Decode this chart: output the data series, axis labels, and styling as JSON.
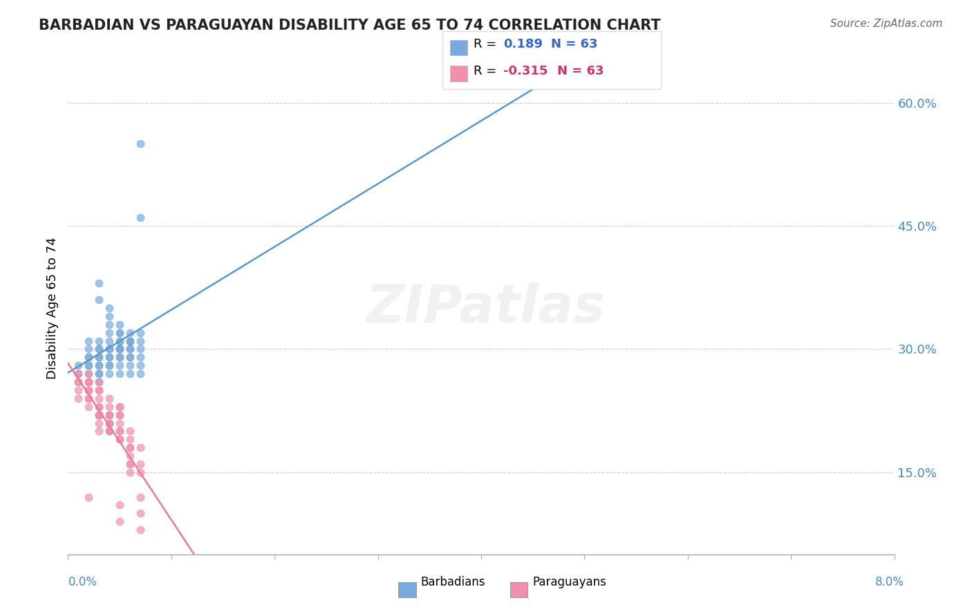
{
  "title": "BARBADIAN VS PARAGUAYAN DISABILITY AGE 65 TO 74 CORRELATION CHART",
  "source": "Source: ZipAtlas.com",
  "ylabel": "Disability Age 65 to 74",
  "y_tick_labels": [
    "15.0%",
    "30.0%",
    "45.0%",
    "60.0%"
  ],
  "y_tick_values": [
    0.15,
    0.3,
    0.45,
    0.6
  ],
  "x_min": 0.0,
  "x_max": 0.08,
  "y_min": 0.05,
  "y_max": 0.65,
  "barbadian_color": "#7aaadd",
  "paraguayan_color": "#f090aa",
  "blue_line_color": "#5599cc",
  "pink_line_color": "#ee7799",
  "grid_color": "#cccccc",
  "background_color": "#ffffff",
  "barbadian_x": [
    0.001,
    0.001,
    0.002,
    0.002,
    0.002,
    0.002,
    0.002,
    0.002,
    0.003,
    0.003,
    0.003,
    0.003,
    0.003,
    0.003,
    0.003,
    0.003,
    0.004,
    0.004,
    0.004,
    0.004,
    0.004,
    0.004,
    0.004,
    0.004,
    0.004,
    0.005,
    0.005,
    0.005,
    0.005,
    0.005,
    0.005,
    0.005,
    0.005,
    0.006,
    0.006,
    0.006,
    0.006,
    0.006,
    0.006,
    0.006,
    0.007,
    0.007,
    0.007,
    0.007,
    0.007,
    0.003,
    0.002,
    0.004,
    0.003,
    0.005,
    0.003,
    0.004,
    0.005,
    0.006,
    0.005,
    0.006,
    0.007,
    0.003,
    0.004,
    0.005,
    0.006,
    0.007,
    0.007
  ],
  "barbadian_y": [
    0.27,
    0.28,
    0.29,
    0.28,
    0.3,
    0.31,
    0.27,
    0.29,
    0.38,
    0.36,
    0.3,
    0.29,
    0.27,
    0.28,
    0.31,
    0.26,
    0.33,
    0.32,
    0.31,
    0.3,
    0.34,
    0.29,
    0.27,
    0.28,
    0.35,
    0.3,
    0.29,
    0.28,
    0.32,
    0.3,
    0.27,
    0.33,
    0.31,
    0.28,
    0.3,
    0.29,
    0.31,
    0.32,
    0.27,
    0.29,
    0.46,
    0.28,
    0.3,
    0.29,
    0.31,
    0.27,
    0.28,
    0.3,
    0.29,
    0.31,
    0.3,
    0.28,
    0.29,
    0.3,
    0.32,
    0.31,
    0.27,
    0.28,
    0.29,
    0.3,
    0.31,
    0.32,
    0.55
  ],
  "paraguayan_x": [
    0.001,
    0.001,
    0.001,
    0.001,
    0.002,
    0.002,
    0.002,
    0.002,
    0.002,
    0.002,
    0.002,
    0.003,
    0.003,
    0.003,
    0.003,
    0.003,
    0.003,
    0.003,
    0.003,
    0.004,
    0.004,
    0.004,
    0.004,
    0.004,
    0.004,
    0.004,
    0.005,
    0.005,
    0.005,
    0.005,
    0.005,
    0.005,
    0.005,
    0.006,
    0.006,
    0.006,
    0.006,
    0.006,
    0.007,
    0.007,
    0.007,
    0.003,
    0.002,
    0.004,
    0.003,
    0.005,
    0.003,
    0.004,
    0.004,
    0.005,
    0.006,
    0.006,
    0.007,
    0.002,
    0.003,
    0.004,
    0.005,
    0.006,
    0.007,
    0.001,
    0.002,
    0.005,
    0.007
  ],
  "paraguayan_y": [
    0.24,
    0.26,
    0.27,
    0.25,
    0.26,
    0.25,
    0.27,
    0.23,
    0.24,
    0.26,
    0.25,
    0.24,
    0.23,
    0.22,
    0.25,
    0.21,
    0.22,
    0.2,
    0.23,
    0.22,
    0.21,
    0.2,
    0.23,
    0.22,
    0.24,
    0.21,
    0.2,
    0.22,
    0.19,
    0.21,
    0.23,
    0.2,
    0.22,
    0.19,
    0.18,
    0.2,
    0.17,
    0.16,
    0.16,
    0.18,
    0.15,
    0.22,
    0.26,
    0.21,
    0.25,
    0.23,
    0.26,
    0.2,
    0.22,
    0.19,
    0.16,
    0.18,
    0.1,
    0.24,
    0.22,
    0.2,
    0.11,
    0.15,
    0.08,
    0.26,
    0.12,
    0.09,
    0.12
  ]
}
